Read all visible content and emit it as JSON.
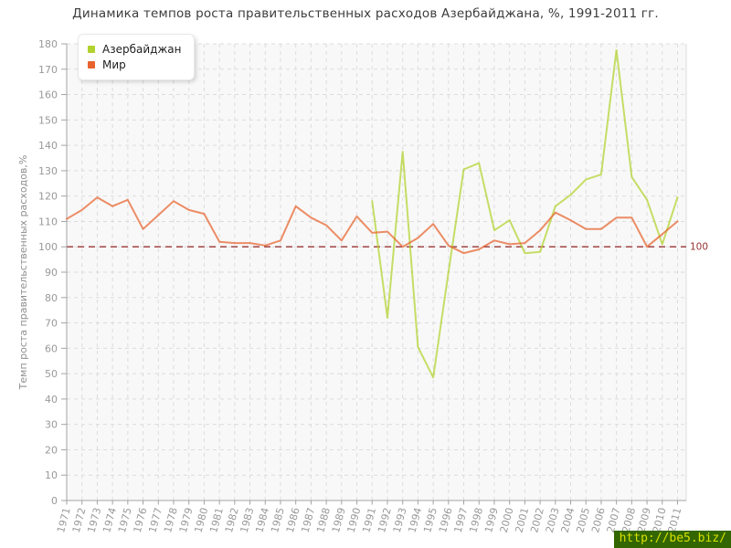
{
  "watermark": {
    "text": "http://be5.biz/",
    "bg": "#336600",
    "color": "#d8e000"
  },
  "chart_data": {
    "type": "line",
    "title": "Динамика темпов роста правительственных расходов Азербайджана, %, 1991-2011 гг.",
    "xlabel": "",
    "ylabel": "Темп роста правительственных расходов,%",
    "ylim": [
      0,
      180
    ],
    "ytick_step": 10,
    "grid": true,
    "legend_position": "top-left",
    "reference_line": {
      "y": 100,
      "label": "100",
      "color": "#993333"
    },
    "x": [
      1971,
      1972,
      1973,
      1974,
      1975,
      1976,
      1977,
      1978,
      1979,
      1980,
      1981,
      1982,
      1983,
      1984,
      1985,
      1986,
      1987,
      1988,
      1989,
      1990,
      1991,
      1992,
      1993,
      1994,
      1995,
      1996,
      1997,
      1998,
      1999,
      2000,
      2001,
      2002,
      2003,
      2004,
      2005,
      2006,
      2007,
      2008,
      2009,
      2010,
      2011
    ],
    "series": [
      {
        "name": "Азербайджан",
        "color": "#b2d22d",
        "values": [
          null,
          null,
          null,
          null,
          null,
          null,
          null,
          null,
          null,
          null,
          null,
          null,
          null,
          null,
          null,
          null,
          null,
          null,
          null,
          null,
          118,
          72,
          137.5,
          60.5,
          48.5,
          90,
          130.5,
          133,
          106.5,
          110.5,
          97.5,
          98,
          116,
          120.5,
          126.5,
          128.5,
          177.5,
          127.5,
          118.5,
          101,
          119.5
        ]
      },
      {
        "name": "Мир",
        "color": "#e8632d",
        "values": [
          111,
          114.5,
          119.5,
          116,
          118.5,
          107,
          112.5,
          118,
          114.5,
          113,
          102,
          101.5,
          101.5,
          100.5,
          102.5,
          116,
          111.5,
          108.5,
          102.5,
          112,
          105.5,
          106,
          100,
          103.5,
          109,
          100.5,
          97.5,
          99,
          102.5,
          101,
          101.5,
          106.5,
          113.5,
          110.5,
          107,
          107,
          111.5,
          111.5,
          100,
          105,
          110
        ]
      }
    ],
    "axis_colors": {
      "axis": "#a3a3a3",
      "grid": "#dcdcdc",
      "tick_label": "#999999",
      "plot_bg": "#f8f8f8",
      "plot_border_right": "#dddddd"
    }
  }
}
